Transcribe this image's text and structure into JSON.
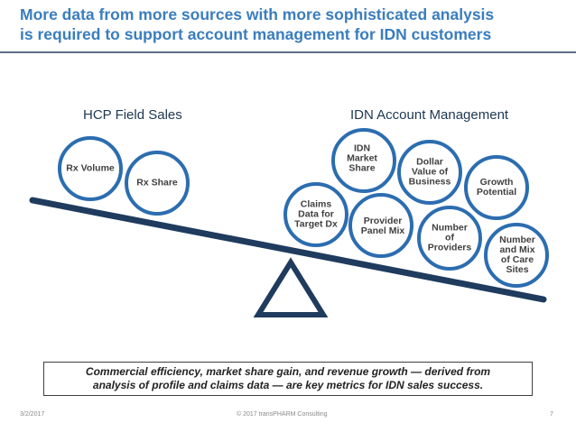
{
  "title": {
    "line1": "More data from more sources with more sophisticated analysis",
    "line2": "is required to support account management for IDN customers"
  },
  "headings": {
    "left": "HCP Field Sales",
    "right": "IDN Account Management"
  },
  "colors": {
    "circle_border": "#2c6db0",
    "beam": "#1f3b5e",
    "title": "#3a7dbe"
  },
  "hcp_metrics": [
    "Rx Volume",
    "Rx Share"
  ],
  "idn_metrics": [
    "Claims\nData for\nTarget Dx",
    "IDN\nMarket\nShare",
    "Provider\nPanel Mix",
    "Dollar\nValue of\nBusiness",
    "Number\nof\nProviders",
    "Growth\nPotential",
    "Number\nand Mix\nof Care\nSites"
  ],
  "caption": {
    "line1": "Commercial efficiency, market share gain, and revenue growth — derived from",
    "line2": "analysis of profile and claims data — are key metrics for IDN sales success."
  },
  "footer": {
    "date": "3/2/2017",
    "copyright": "© 2017 transPHARM Consulting",
    "page": "7"
  }
}
